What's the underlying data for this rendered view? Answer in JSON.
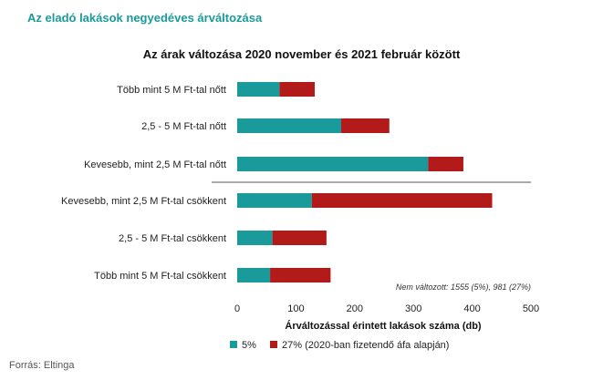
{
  "header": {
    "title": "Az eladó lakások negyedéves árváltozása"
  },
  "footer": {
    "source": "Forrás: Eltinga"
  },
  "colors": {
    "series1": "#1a9a9a",
    "series2": "#b31b1b",
    "title": "#1a9a9a"
  },
  "chart_data": {
    "type": "bar",
    "orientation": "horizontal",
    "stacked": true,
    "title": "Az árak változása 2020 november és 2021 február között",
    "xlabel": "Árváltozással érintett lakások száma (db)",
    "ylabel": "",
    "xlim": [
      0,
      500
    ],
    "xticks": [
      0,
      100,
      200,
      300,
      400,
      500
    ],
    "grid": false,
    "legend_position": "bottom",
    "categories": [
      "Több mint 5 M Ft-tal nőtt",
      "2,5 - 5 M Ft-tal nőtt",
      "Kevesebb, mint 2,5 M Ft-tal nőtt",
      "Kevesebb, mint 2,5 M Ft-tal csökkent",
      "2,5 - 5 M Ft-tal csökkent",
      "Több mint 5 M Ft-tal csökkent"
    ],
    "series": [
      {
        "name": "5%",
        "values": [
          72,
          177,
          325,
          127,
          60,
          56
        ]
      },
      {
        "name": "27% (2020-ban fizetendő áfa alapján)",
        "values": [
          60,
          82,
          60,
          307,
          92,
          103
        ]
      }
    ],
    "annotation": "Nem változott: 1555 (5%), 981 (27%)"
  }
}
